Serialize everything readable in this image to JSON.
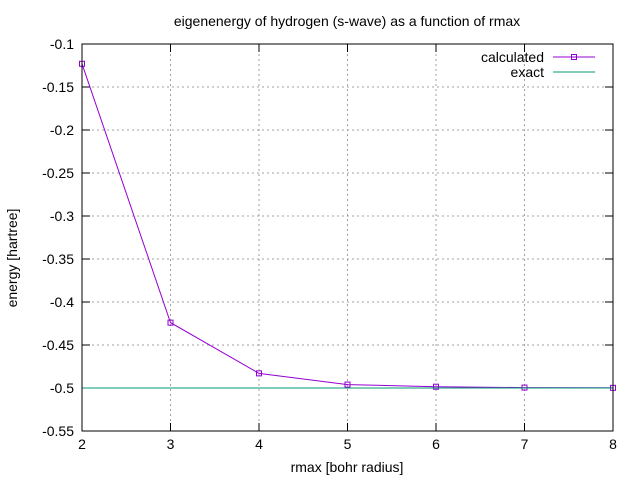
{
  "chart_data": {
    "type": "line",
    "title": "eigenenergy of hydrogen (s-wave) as a function of rmax",
    "xlabel": "rmax [bohr radius]",
    "ylabel": "energy [hartree]",
    "xlim": [
      2,
      8
    ],
    "ylim": [
      -0.55,
      -0.1
    ],
    "grid": true,
    "legend_position": "top-right",
    "x_ticks": [
      "2",
      "3",
      "4",
      "5",
      "6",
      "7",
      "8"
    ],
    "y_ticks": [
      "-0.1",
      "-0.15",
      "-0.2",
      "-0.25",
      "-0.3",
      "-0.35",
      "-0.4",
      "-0.45",
      "-0.5",
      "-0.55"
    ],
    "series": [
      {
        "name": "calculated",
        "color": "#9400d3",
        "marker": "square",
        "x": [
          2,
          3,
          4,
          5,
          6,
          7,
          8
        ],
        "y": [
          -0.123,
          -0.424,
          -0.483,
          -0.496,
          -0.4985,
          -0.4995,
          -0.4998
        ]
      },
      {
        "name": "exact",
        "color": "#009e73",
        "marker": "none",
        "x": [
          2,
          8
        ],
        "y": [
          -0.5,
          -0.5
        ]
      }
    ]
  }
}
